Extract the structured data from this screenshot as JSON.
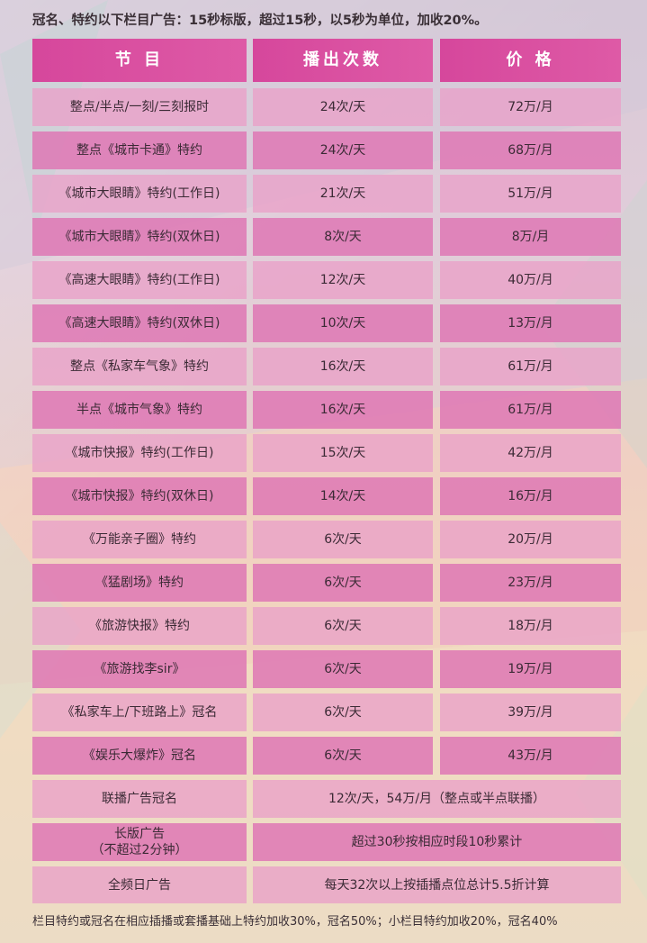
{
  "header_note": "冠名、特约以下栏目广告：15秒标版，超过15秒，以5秒为单位，加收20%。",
  "columns": [
    "节 目",
    "播出次数",
    "价 格"
  ],
  "rows": [
    [
      "整点/半点/一刻/三刻报时",
      "24次/天",
      "72万/月"
    ],
    [
      "整点《城市卡通》特约",
      "24次/天",
      "68万/月"
    ],
    [
      "《城市大眼睛》特约(工作日)",
      "21次/天",
      "51万/月"
    ],
    [
      "《城市大眼睛》特约(双休日)",
      "8次/天",
      "8万/月"
    ],
    [
      "《高速大眼睛》特约(工作日)",
      "12次/天",
      "40万/月"
    ],
    [
      "《高速大眼睛》特约(双休日)",
      "10次/天",
      "13万/月"
    ],
    [
      "整点《私家车气象》特约",
      "16次/天",
      "61万/月"
    ],
    [
      "半点《城市气象》特约",
      "16次/天",
      "61万/月"
    ],
    [
      "《城市快报》特约(工作日)",
      "15次/天",
      "42万/月"
    ],
    [
      "《城市快报》特约(双休日)",
      "14次/天",
      "16万/月"
    ],
    [
      "《万能亲子圈》特约",
      "6次/天",
      "20万/月"
    ],
    [
      "《猛剧场》特约",
      "6次/天",
      "23万/月"
    ],
    [
      "《旅游快报》特约",
      "6次/天",
      "18万/月"
    ],
    [
      "《旅游找李sir》",
      "6次/天",
      "19万/月"
    ],
    [
      "《私家车上/下班路上》冠名",
      "6次/天",
      "39万/月"
    ],
    [
      "《娱乐大爆炸》冠名",
      "6次/天",
      "43万/月"
    ]
  ],
  "merged_rows": [
    {
      "program": "联播广告冠名",
      "detail": "12次/天，54万/月（整点或半点联播）"
    },
    {
      "program_line1": "长版广告",
      "program_line2": "（不超过2分钟）",
      "detail": "超过30秒按相应时段10秒累计"
    },
    {
      "program": "全频日广告",
      "detail": "每天32次以上按插播点位总计5.5折计算"
    }
  ],
  "footer_note": "栏目特约或冠名在相应插播或套播基础上特约加收30%，冠名50%；小栏目特约加收20%，冠名40%",
  "colors": {
    "header": "#d6479c",
    "row_light": "#e9a0c8",
    "row_dark": "#de78b4"
  }
}
